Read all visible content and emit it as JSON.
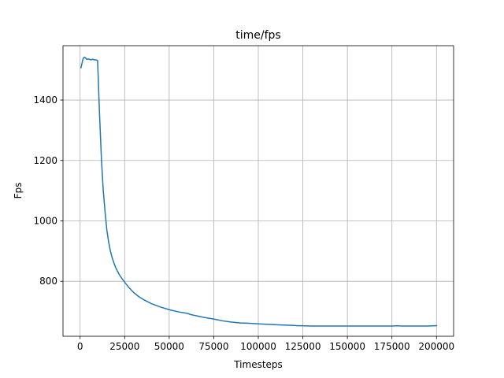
{
  "chart_data": {
    "type": "line",
    "title": "time/fps",
    "xlabel": "Timesteps",
    "ylabel": "Fps",
    "xlim": [
      -9600,
      209600
    ],
    "ylim": [
      618,
      1580
    ],
    "xticks": [
      0,
      25000,
      50000,
      75000,
      100000,
      125000,
      150000,
      175000,
      200000
    ],
    "xtick_labels": [
      "0",
      "25000",
      "50000",
      "75000",
      "100000",
      "125000",
      "150000",
      "175000",
      "200000"
    ],
    "yticks": [
      800,
      1000,
      1200,
      1400
    ],
    "ytick_labels": [
      "800",
      "1000",
      "1200",
      "1400"
    ],
    "grid": true,
    "color": "#1f77b4",
    "series": [
      {
        "x": [
          500,
          1000,
          1500,
          2000,
          2500,
          3000,
          3500,
          4000,
          5000,
          6000,
          7000,
          8000,
          9000,
          9800,
          10200,
          10600,
          11000,
          12000,
          13000,
          14000,
          15000,
          16000,
          17000,
          18000,
          19000,
          20000,
          21000,
          22000,
          23000,
          24000,
          25000,
          27000,
          30000,
          33000,
          36000,
          40000,
          45000,
          50000,
          55000,
          60000,
          62000,
          65000,
          70000,
          75000,
          80000,
          85000,
          90000,
          95000,
          100000,
          110000,
          120000,
          122000,
          130000,
          140000,
          150000,
          160000,
          170000,
          175000,
          178000,
          180000,
          185000,
          190000,
          195000,
          200000
        ],
        "y": [
          1507,
          1520,
          1533,
          1540,
          1542,
          1540,
          1536,
          1535,
          1536,
          1533,
          1535,
          1533,
          1533,
          1531,
          1470,
          1400,
          1340,
          1200,
          1100,
          1030,
          970,
          930,
          900,
          878,
          860,
          845,
          833,
          822,
          813,
          805,
          797,
          782,
          763,
          749,
          738,
          726,
          715,
          706,
          699,
          694,
          690,
          686,
          680,
          675,
          669,
          665,
          662,
          661,
          659,
          656,
          654,
          653,
          652,
          652,
          652,
          652,
          652,
          652,
          653,
          652,
          652,
          652,
          652,
          653
        ]
      }
    ]
  }
}
